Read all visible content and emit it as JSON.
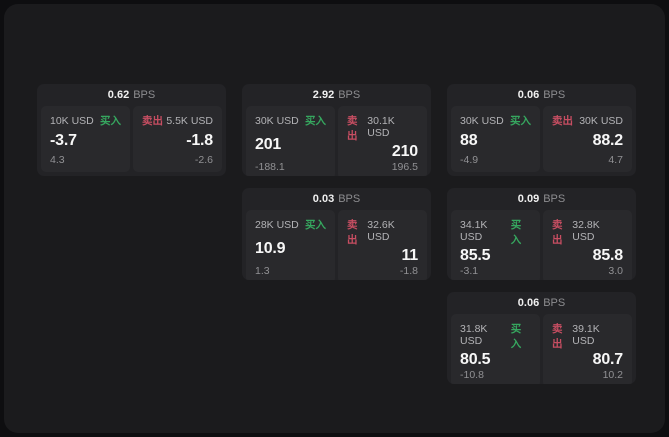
{
  "labels": {
    "bps": "BPS",
    "buy": "买入",
    "sell": "卖出"
  },
  "colors": {
    "background": "#0e0e10",
    "panel": "#1b1b1d",
    "card": "#232326",
    "subcard": "#29292c",
    "buy_green": "#36a75f",
    "sell_red": "#c84e62"
  },
  "cards": [
    {
      "bps": "0.62",
      "buy": {
        "amount": "10K USD",
        "value": "-3.7",
        "delta": "4.3"
      },
      "sell": {
        "amount": "5.5K USD",
        "value": "-1.8",
        "delta": "-2.6"
      }
    },
    {
      "bps": "2.92",
      "buy": {
        "amount": "30K USD",
        "value": "201",
        "delta": "-188.1"
      },
      "sell": {
        "amount": "30.1K USD",
        "value": "210",
        "delta": "196.5"
      }
    },
    {
      "bps": "0.06",
      "buy": {
        "amount": "30K USD",
        "value": "88",
        "delta": "-4.9"
      },
      "sell": {
        "amount": "30K USD",
        "value": "88.2",
        "delta": "4.7"
      }
    },
    {
      "bps": "0.03",
      "buy": {
        "amount": "28K USD",
        "value": "10.9",
        "delta": "1.3"
      },
      "sell": {
        "amount": "32.6K USD",
        "value": "11",
        "delta": "-1.8"
      }
    },
    {
      "bps": "0.09",
      "buy": {
        "amount": "34.1K USD",
        "value": "85.5",
        "delta": "-3.1"
      },
      "sell": {
        "amount": "32.8K USD",
        "value": "85.8",
        "delta": "3.0"
      }
    },
    {
      "bps": "0.06",
      "buy": {
        "amount": "31.8K USD",
        "value": "80.5",
        "delta": "-10.8"
      },
      "sell": {
        "amount": "39.1K USD",
        "value": "80.7",
        "delta": "10.2"
      }
    }
  ]
}
